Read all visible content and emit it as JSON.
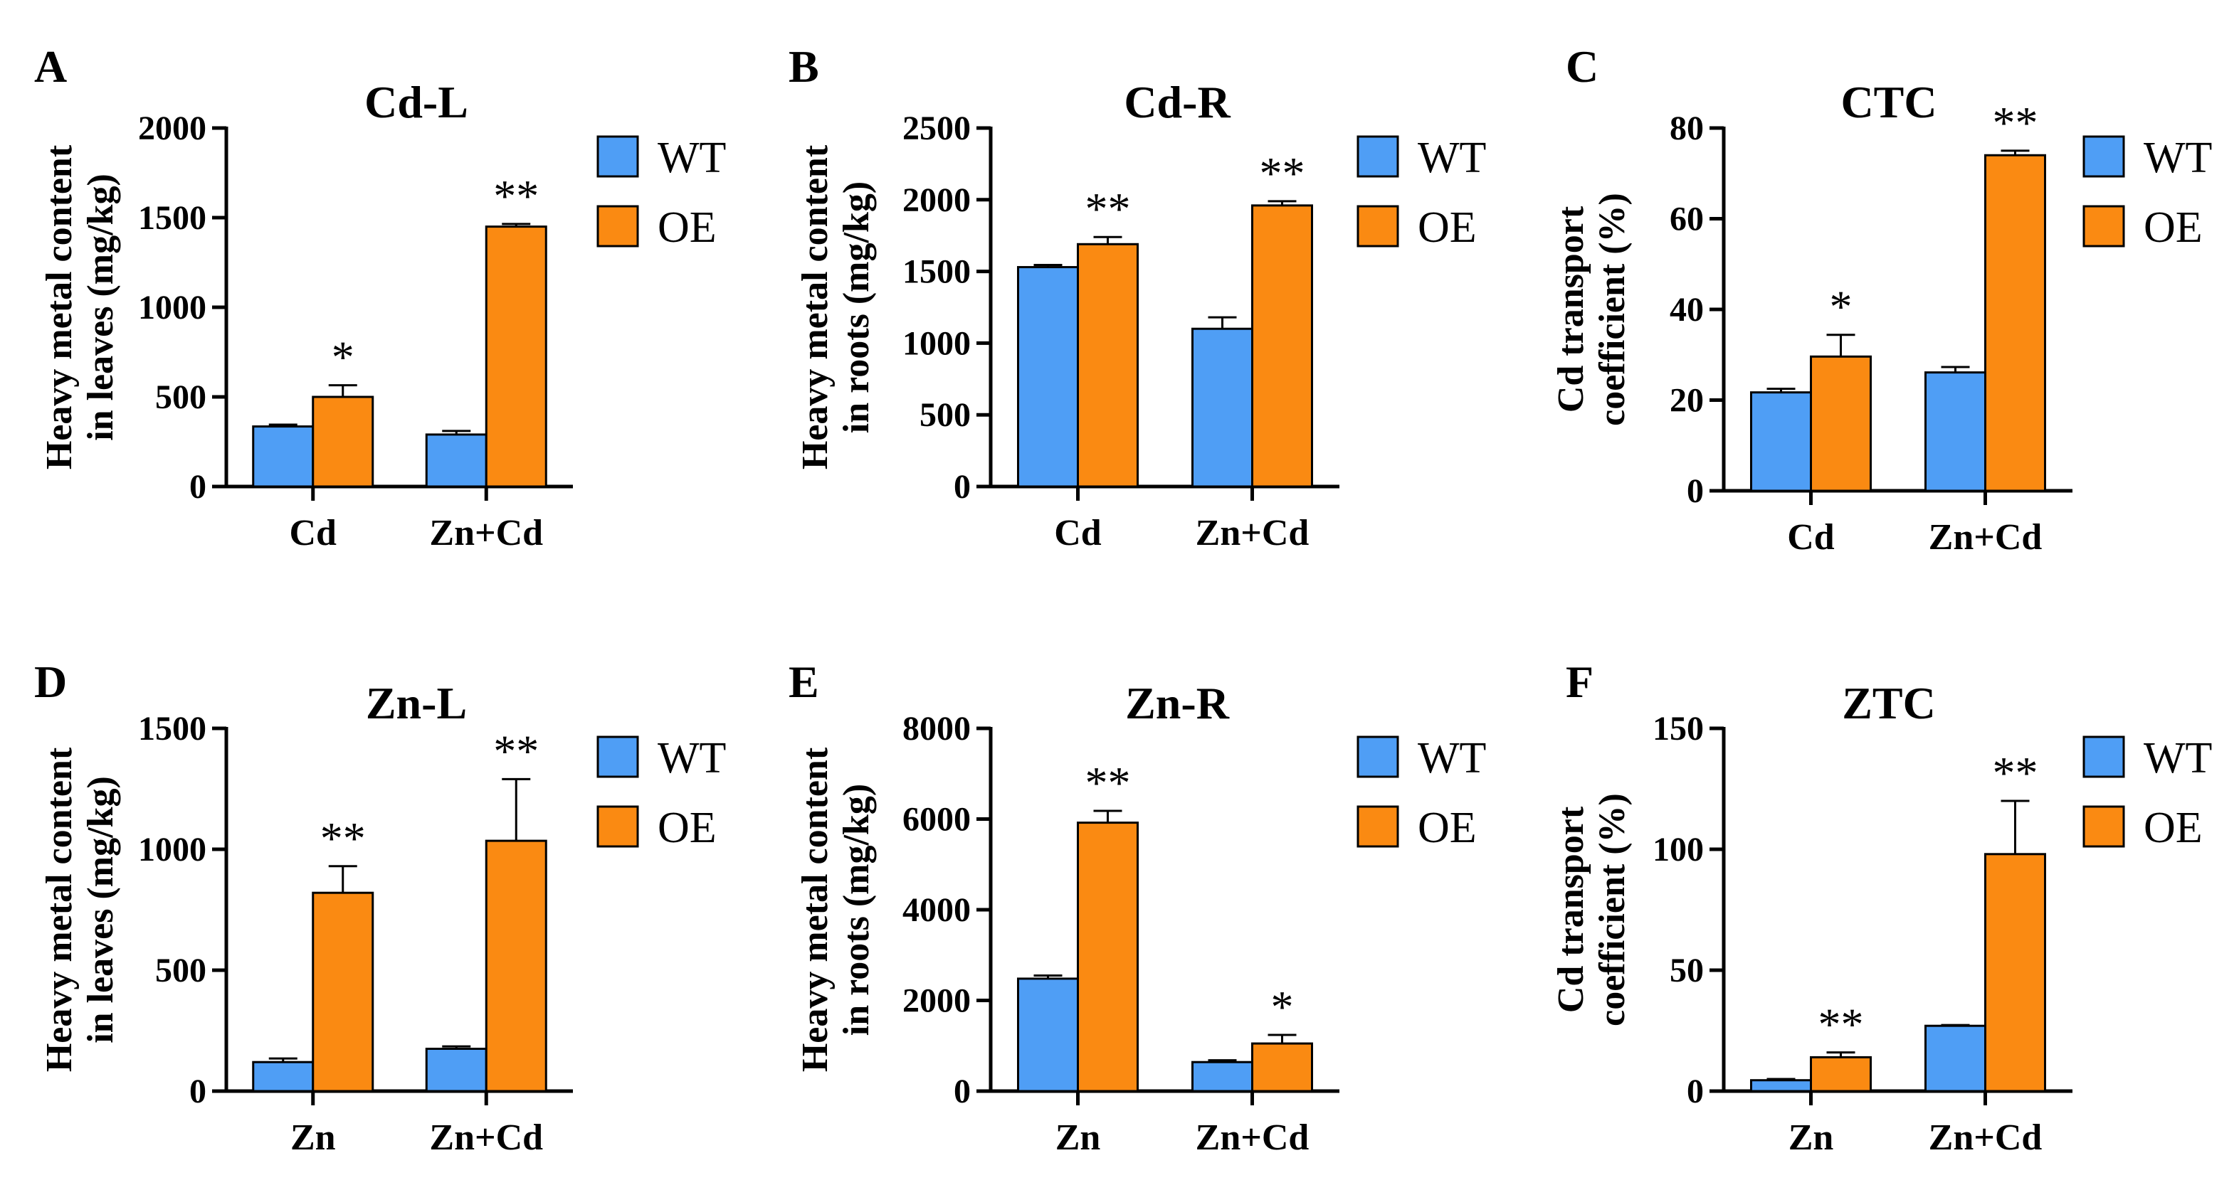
{
  "figure": {
    "colors": {
      "WT": "#4f9ef5",
      "OE": "#fa8a12",
      "axis": "#000000"
    }
  },
  "chart_data": [
    {
      "panel": "A",
      "type": "bar",
      "title": "Cd-L",
      "ylabel": [
        "Heavy metal content",
        "in leaves (mg/kg)"
      ],
      "categories": [
        "Cd",
        "Zn+Cd"
      ],
      "ylim": [
        0,
        2000
      ],
      "yticks": [
        0,
        500,
        1000,
        1500,
        2000
      ],
      "series": [
        {
          "name": "WT",
          "values": [
            335,
            290
          ],
          "errors": [
            10,
            20
          ]
        },
        {
          "name": "OE",
          "values": [
            500,
            1450
          ],
          "errors": [
            65,
            15
          ]
        }
      ],
      "significance": [
        "*",
        "**"
      ]
    },
    {
      "panel": "B",
      "type": "bar",
      "title": "Cd-R",
      "ylabel": [
        "Heavy metal content",
        "in roots (mg/kg)"
      ],
      "categories": [
        "Cd",
        "Zn+Cd"
      ],
      "ylim": [
        0,
        2500
      ],
      "yticks": [
        0,
        500,
        1000,
        1500,
        2000,
        2500
      ],
      "series": [
        {
          "name": "WT",
          "values": [
            1530,
            1100
          ],
          "errors": [
            15,
            80
          ]
        },
        {
          "name": "OE",
          "values": [
            1690,
            1960
          ],
          "errors": [
            50,
            30
          ]
        }
      ],
      "significance": [
        "**",
        "**"
      ]
    },
    {
      "panel": "C",
      "type": "bar",
      "title": "CTC",
      "ylabel": [
        "Cd transport",
        "coefficient (%)"
      ],
      "categories": [
        "Cd",
        "Zn+Cd"
      ],
      "ylim": [
        0,
        80
      ],
      "yticks": [
        0,
        20,
        40,
        60,
        80
      ],
      "series": [
        {
          "name": "WT",
          "values": [
            21.7,
            26.1
          ],
          "errors": [
            0.8,
            1.2
          ]
        },
        {
          "name": "OE",
          "values": [
            29.6,
            74.0
          ],
          "errors": [
            4.8,
            1.0
          ]
        }
      ],
      "significance": [
        "*",
        "**"
      ]
    },
    {
      "panel": "D",
      "type": "bar",
      "title": "Zn-L",
      "ylabel": [
        "Heavy metal content",
        "in leaves (mg/kg)"
      ],
      "categories": [
        "Zn",
        "Zn+Cd"
      ],
      "ylim": [
        0,
        1500
      ],
      "yticks": [
        0,
        500,
        1000,
        1500
      ],
      "series": [
        {
          "name": "WT",
          "values": [
            120,
            175
          ],
          "errors": [
            15,
            10
          ]
        },
        {
          "name": "OE",
          "values": [
            820,
            1035
          ],
          "errors": [
            110,
            255
          ]
        }
      ],
      "significance": [
        "**",
        "**"
      ]
    },
    {
      "panel": "E",
      "type": "bar",
      "title": "Zn-R",
      "ylabel": [
        "Heavy metal content",
        "in roots (mg/kg)"
      ],
      "categories": [
        "Zn",
        "Zn+Cd"
      ],
      "ylim": [
        0,
        8000
      ],
      "yticks": [
        0,
        2000,
        4000,
        6000,
        8000
      ],
      "series": [
        {
          "name": "WT",
          "values": [
            2480,
            640
          ],
          "errors": [
            70,
            40
          ]
        },
        {
          "name": "OE",
          "values": [
            5920,
            1050
          ],
          "errors": [
            260,
            190
          ]
        }
      ],
      "significance": [
        "**",
        "*"
      ]
    },
    {
      "panel": "F",
      "type": "bar",
      "title": "ZTC",
      "ylabel": [
        "Cd transport",
        "coefficient (%)"
      ],
      "categories": [
        "Zn",
        "Zn+Cd"
      ],
      "ylim": [
        0,
        150
      ],
      "yticks": [
        0,
        50,
        100,
        150
      ],
      "series": [
        {
          "name": "WT",
          "values": [
            4.5,
            27.0
          ],
          "errors": [
            0.5,
            0.3
          ]
        },
        {
          "name": "OE",
          "values": [
            14.0,
            98.0
          ],
          "errors": [
            2.0,
            22.0
          ]
        }
      ],
      "significance": [
        "**",
        "**"
      ]
    }
  ]
}
